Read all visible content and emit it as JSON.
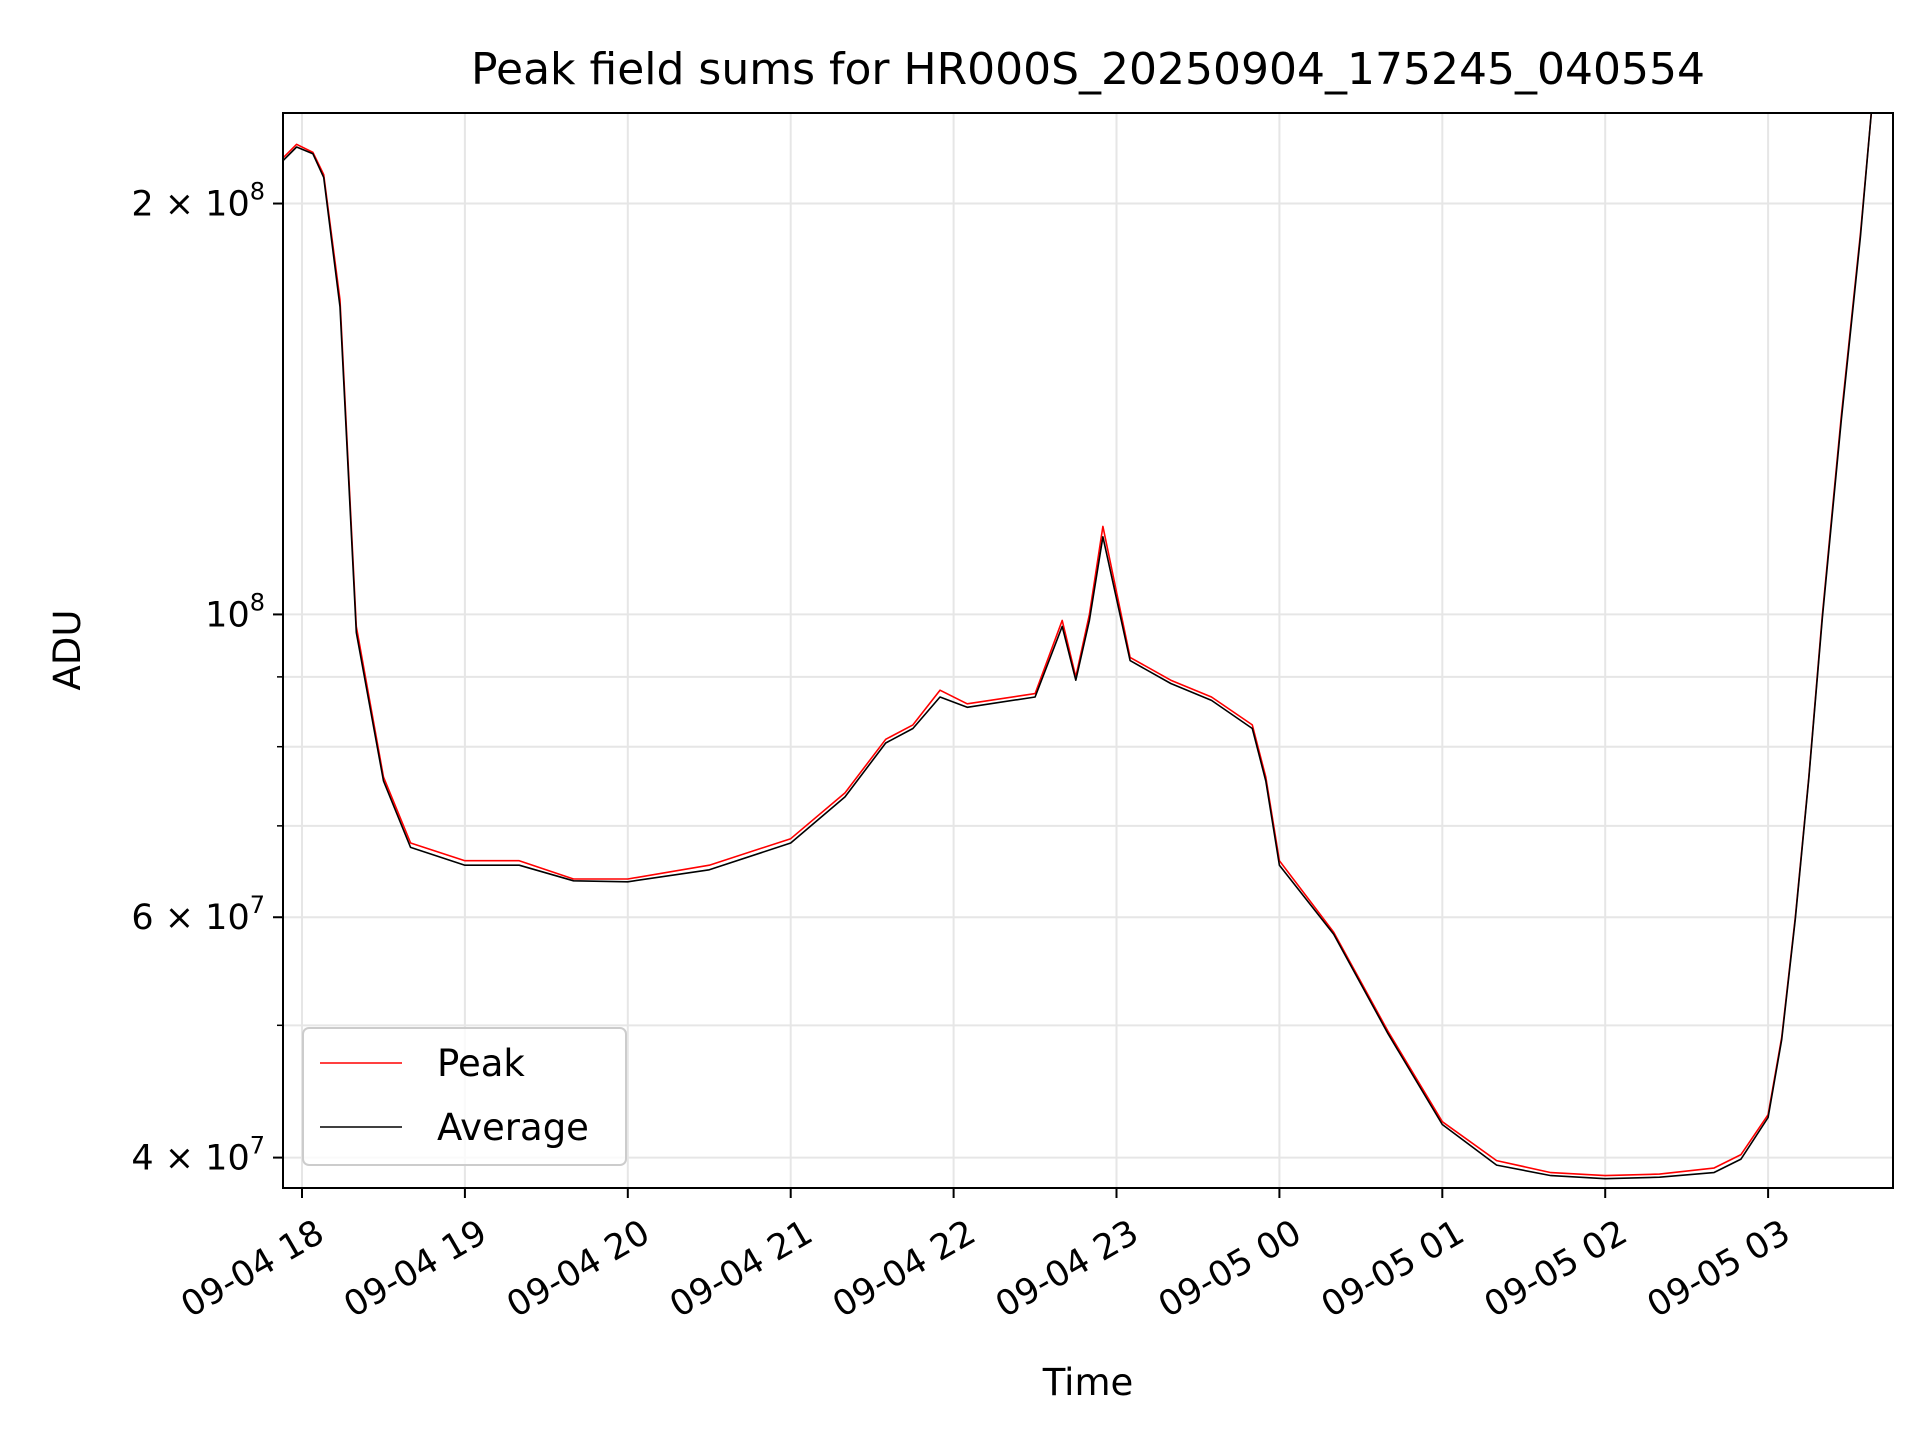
{
  "chart_data": {
    "type": "line",
    "title": "Peak field sums for HR000S_20250904_175245_040554",
    "xlabel": "Time",
    "ylabel": "ADU",
    "yscale": "log",
    "ylim": [
      38000000,
      233000000
    ],
    "xlim": [
      "2025-09-04 17:53",
      "2025-09-05 03:46"
    ],
    "grid": true,
    "legend_position": "lower-left",
    "x_ticks": [
      "09-04 18",
      "09-04 19",
      "09-04 20",
      "09-04 21",
      "09-04 22",
      "09-04 23",
      "09-05 00",
      "09-05 01",
      "09-05 02",
      "09-05 03"
    ],
    "x_tick_times": [
      "2025-09-04 18:00",
      "2025-09-04 19:00",
      "2025-09-04 20:00",
      "2025-09-04 21:00",
      "2025-09-04 22:00",
      "2025-09-04 23:00",
      "2025-09-05 00:00",
      "2025-09-05 01:00",
      "2025-09-05 02:00",
      "2025-09-05 03:00"
    ],
    "y_ticks": [
      {
        "value": 40000000,
        "mantissa": "4",
        "exponent": "7"
      },
      {
        "value": 60000000,
        "mantissa": "6",
        "exponent": "7"
      },
      {
        "value": 100000000,
        "mantissa": "",
        "exponent": "8"
      },
      {
        "value": 200000000,
        "mantissa": "2",
        "exponent": "8"
      }
    ],
    "y_minor_ticks": [
      50000000,
      70000000,
      80000000,
      90000000
    ],
    "series": [
      {
        "name": "Peak",
        "color": "#ff0000",
        "x": [
          "2025-09-04 17:53",
          "2025-09-04 17:58",
          "2025-09-04 18:04",
          "2025-09-04 18:08",
          "2025-09-04 18:14",
          "2025-09-04 18:20",
          "2025-09-04 18:30",
          "2025-09-04 18:40",
          "2025-09-04 19:00",
          "2025-09-04 19:20",
          "2025-09-04 19:40",
          "2025-09-04 20:00",
          "2025-09-04 20:30",
          "2025-09-04 21:00",
          "2025-09-04 21:20",
          "2025-09-04 21:35",
          "2025-09-04 21:45",
          "2025-09-04 21:55",
          "2025-09-04 22:05",
          "2025-09-04 22:30",
          "2025-09-04 22:40",
          "2025-09-04 22:45",
          "2025-09-04 22:50",
          "2025-09-04 22:55",
          "2025-09-04 23:05",
          "2025-09-04 23:20",
          "2025-09-04 23:35",
          "2025-09-04 23:50",
          "2025-09-04 23:55",
          "2025-09-05 00:00",
          "2025-09-05 00:20",
          "2025-09-05 00:40",
          "2025-09-05 01:00",
          "2025-09-05 01:20",
          "2025-09-05 01:40",
          "2025-09-05 02:00",
          "2025-09-05 02:20",
          "2025-09-05 02:40",
          "2025-09-05 02:50",
          "2025-09-05 03:00",
          "2025-09-05 03:05",
          "2025-09-05 03:10",
          "2025-09-05 03:15",
          "2025-09-05 03:20",
          "2025-09-05 03:27",
          "2025-09-05 03:34",
          "2025-09-05 03:38"
        ],
        "values": [
          216000000,
          221000000,
          218000000,
          210000000,
          170000000,
          98000000,
          76000000,
          68000000,
          66000000,
          66000000,
          64000000,
          64000000,
          65500000,
          68500000,
          74000000,
          81000000,
          83000000,
          88000000,
          86000000,
          87500000,
          99000000,
          90000000,
          100000000,
          116000000,
          93000000,
          89500000,
          87000000,
          83000000,
          76000000,
          66000000,
          58500000,
          49500000,
          42500000,
          39800000,
          39000000,
          38800000,
          38900000,
          39300000,
          40200000,
          43000000,
          49000000,
          60000000,
          76000000,
          100000000,
          140000000,
          190000000,
          233000000
        ]
      },
      {
        "name": "Average",
        "color": "#000000",
        "x": [
          "2025-09-04 17:53",
          "2025-09-04 17:58",
          "2025-09-04 18:04",
          "2025-09-04 18:08",
          "2025-09-04 18:14",
          "2025-09-04 18:20",
          "2025-09-04 18:30",
          "2025-09-04 18:40",
          "2025-09-04 19:00",
          "2025-09-04 19:20",
          "2025-09-04 19:40",
          "2025-09-04 20:00",
          "2025-09-04 20:30",
          "2025-09-04 21:00",
          "2025-09-04 21:20",
          "2025-09-04 21:35",
          "2025-09-04 21:45",
          "2025-09-04 21:55",
          "2025-09-04 22:05",
          "2025-09-04 22:30",
          "2025-09-04 22:40",
          "2025-09-04 22:45",
          "2025-09-04 22:50",
          "2025-09-04 22:55",
          "2025-09-04 23:05",
          "2025-09-04 23:20",
          "2025-09-04 23:35",
          "2025-09-04 23:50",
          "2025-09-04 23:55",
          "2025-09-05 00:00",
          "2025-09-05 00:20",
          "2025-09-05 00:40",
          "2025-09-05 01:00",
          "2025-09-05 01:20",
          "2025-09-05 01:40",
          "2025-09-05 02:00",
          "2025-09-05 02:20",
          "2025-09-05 02:40",
          "2025-09-05 02:50",
          "2025-09-05 03:00",
          "2025-09-05 03:05",
          "2025-09-05 03:10",
          "2025-09-05 03:15",
          "2025-09-05 03:20",
          "2025-09-05 03:27",
          "2025-09-05 03:34",
          "2025-09-05 03:38"
        ],
        "values": [
          215000000,
          220000000,
          217500000,
          209000000,
          168000000,
          97000000,
          75500000,
          67500000,
          65500000,
          65500000,
          63800000,
          63700000,
          65000000,
          68000000,
          73500000,
          80500000,
          82500000,
          87000000,
          85500000,
          87000000,
          98000000,
          89500000,
          99000000,
          114000000,
          92500000,
          89000000,
          86500000,
          82500000,
          75500000,
          65500000,
          58300000,
          49300000,
          42300000,
          39500000,
          38800000,
          38600000,
          38700000,
          39000000,
          39900000,
          42800000,
          48800000,
          59800000,
          75800000,
          99500000,
          139000000,
          189000000,
          233000000
        ]
      }
    ]
  }
}
